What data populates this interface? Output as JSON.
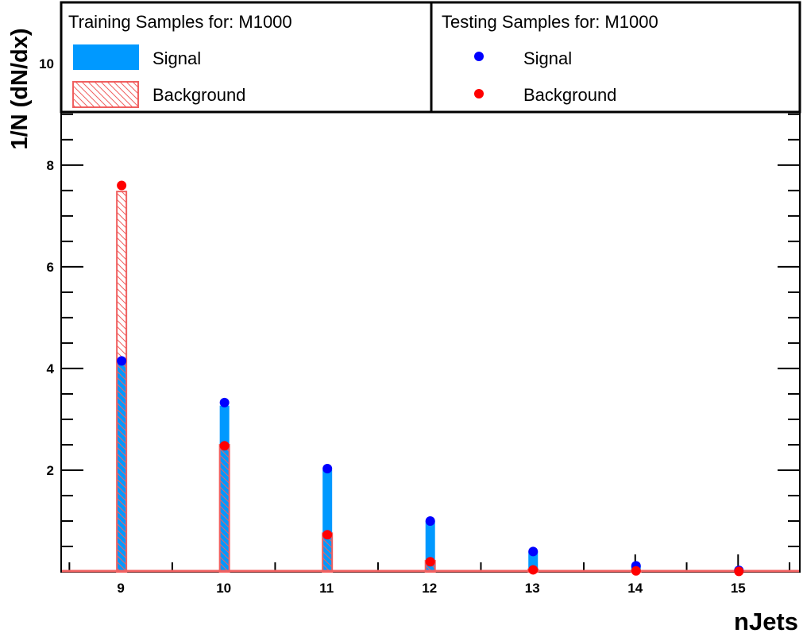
{
  "chart_data": {
    "type": "bar",
    "xlabel": "nJets",
    "ylabel": "1/N (dN/dx)",
    "x": [
      9,
      10,
      11,
      12,
      13,
      14,
      15
    ],
    "xlim": [
      8.42,
      15.6
    ],
    "ylim": [
      0,
      11.2
    ],
    "xticks": [
      9,
      10,
      11,
      12,
      13,
      14,
      15
    ],
    "yticks": [
      2,
      4,
      6,
      8,
      10
    ],
    "legend_position": "top",
    "training": {
      "title": "Training Samples for: M1000",
      "signal": {
        "name": "Signal",
        "values": [
          4.15,
          3.27,
          2.01,
          1.0,
          0.4,
          0.12,
          0.03
        ],
        "color": "#0099ff"
      },
      "background": {
        "name": "Background",
        "values": [
          7.48,
          2.5,
          0.76,
          0.22,
          0.05,
          0.02,
          0.0
        ],
        "color": "#f06060"
      }
    },
    "testing": {
      "title": "Testing Samples for: M1000",
      "signal": {
        "name": "Signal",
        "values": [
          4.15,
          3.33,
          2.03,
          1.0,
          0.4,
          0.12,
          0.03
        ],
        "color": "#0000ff"
      },
      "background": {
        "name": "Background",
        "values": [
          7.6,
          2.48,
          0.73,
          0.2,
          0.04,
          0.02,
          0.01
        ],
        "color": "#ff0000"
      }
    }
  }
}
